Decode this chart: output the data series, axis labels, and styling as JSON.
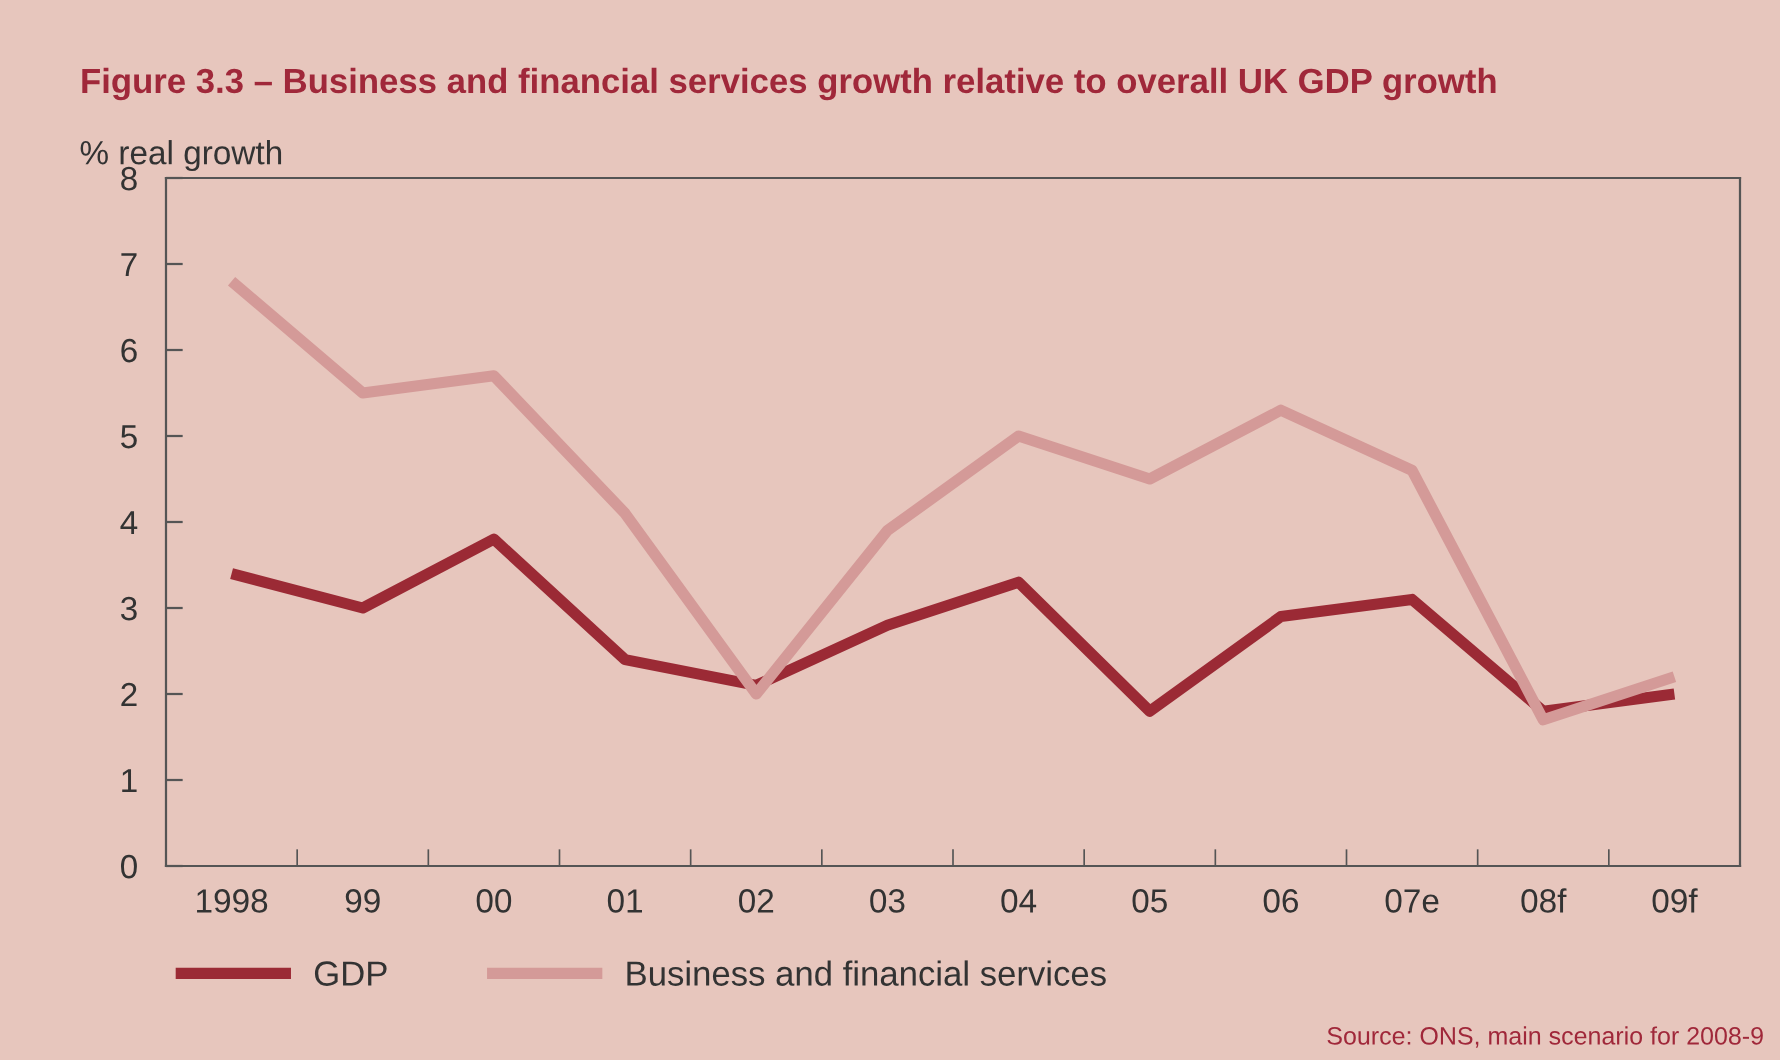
{
  "chart_data": {
    "type": "line",
    "title": "Figure 3.3 – Business and financial services growth relative to overall UK GDP growth",
    "ylabel": "% real growth",
    "categories": [
      "1998",
      "99",
      "00",
      "01",
      "02",
      "03",
      "04",
      "05",
      "06",
      "07e",
      "08f",
      "09f"
    ],
    "series": [
      {
        "name": "GDP",
        "color": "#9b2a35",
        "values": [
          3.4,
          3.0,
          3.8,
          2.4,
          2.1,
          2.8,
          3.3,
          1.8,
          2.9,
          3.1,
          1.8,
          2.0
        ]
      },
      {
        "name": "Business and financial services",
        "color": "#d49a98",
        "values": [
          6.8,
          5.5,
          5.7,
          4.1,
          2.0,
          3.9,
          5.0,
          4.5,
          5.3,
          4.6,
          1.7,
          2.2
        ]
      }
    ],
    "ylim": [
      0,
      8
    ],
    "yticks": [
      0,
      1,
      2,
      3,
      4,
      5,
      6,
      7,
      8
    ],
    "grid": false,
    "legend": "bottom left",
    "marker": "none",
    "line_style": "solid",
    "annotations": [
      "Source: ONS, main scenario for 2008-9"
    ]
  }
}
